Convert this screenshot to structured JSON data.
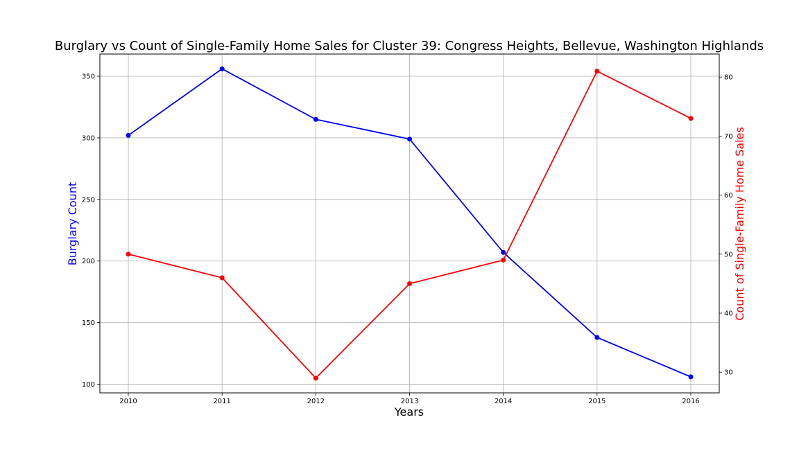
{
  "chart_data": {
    "type": "line",
    "title": "Burglary vs Count of Single-Family Home Sales for Cluster 39: Congress Heights, Bellevue, Washington Highlands",
    "xlabel": "Years",
    "ylabel_left": "Burglary Count",
    "ylabel_right": "Count of Single-Family Home Sales",
    "x": [
      "2010",
      "2011",
      "2012",
      "2013",
      "2014",
      "2015",
      "2016"
    ],
    "series": [
      {
        "axis": "left",
        "color": "#0000ff",
        "values": [
          302,
          356,
          315,
          299,
          207,
          138,
          106
        ]
      },
      {
        "axis": "right",
        "color": "#ff0000",
        "values": [
          50,
          46,
          29,
          45,
          49,
          81,
          73
        ]
      }
    ],
    "ylim_left": [
      93,
      368
    ],
    "ylim_right": [
      26.5,
      83.9
    ],
    "yticks_left": [
      100,
      150,
      200,
      250,
      300,
      350
    ],
    "yticks_right": [
      30,
      40,
      50,
      60,
      70,
      80
    ],
    "grid": true,
    "legend": "none"
  }
}
